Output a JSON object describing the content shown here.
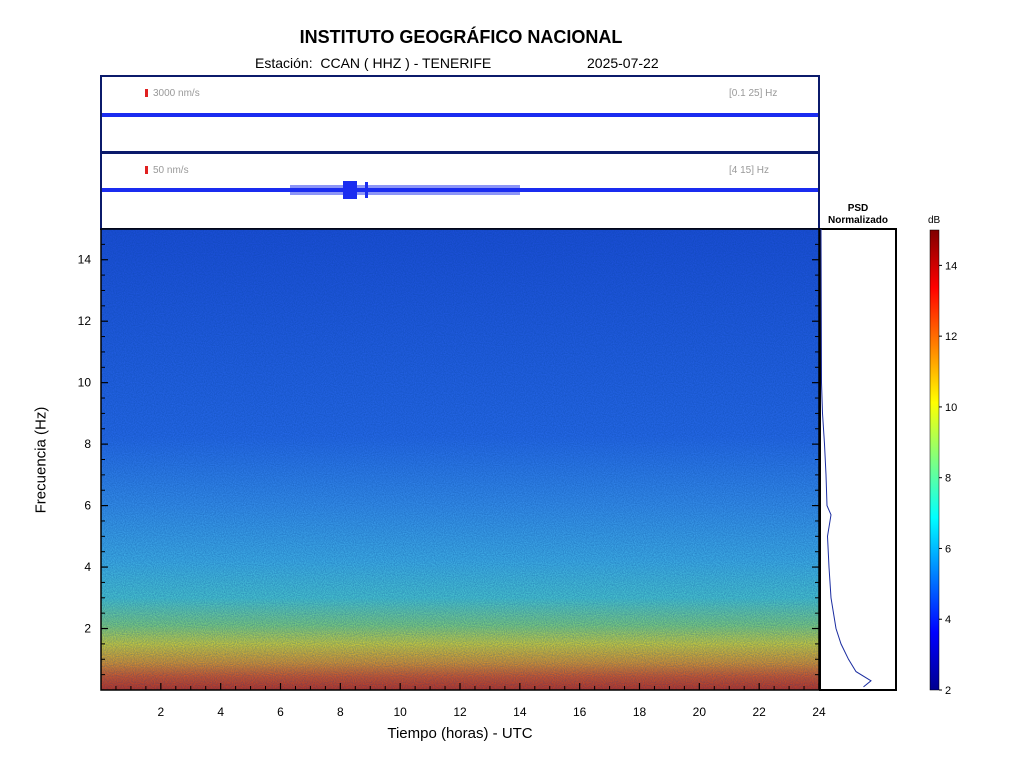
{
  "header": {
    "title": "INSTITUTO GEOGRÁFICO NACIONAL",
    "station": "Estación:  CCAN ( HHZ ) - TENERIFE",
    "date": "2025-07-22"
  },
  "traces": [
    {
      "scale_label": "3000 nm/s",
      "band_label": "[0.1 25] Hz"
    },
    {
      "scale_label": "50 nm/s",
      "band_label": "[4 15] Hz"
    }
  ],
  "psd": {
    "title_line1": "PSD",
    "title_line2": "Normalizado"
  },
  "colorbar": {
    "unit": "dB",
    "ticks": [
      "2",
      "4",
      "6",
      "8",
      "10",
      "12",
      "14"
    ],
    "range": [
      2,
      15
    ]
  },
  "chart_data": {
    "type": "heatmap",
    "title": "INSTITUTO GEOGRÁFICO NACIONAL",
    "xlabel": "Tiempo (horas) - UTC",
    "ylabel": "Frecuencia  (Hz)",
    "xlim": [
      0,
      24
    ],
    "ylim": [
      0,
      15
    ],
    "x_ticks": [
      2,
      4,
      6,
      8,
      10,
      12,
      14,
      16,
      18,
      20,
      22,
      24
    ],
    "y_ticks": [
      2,
      4,
      6,
      8,
      10,
      12,
      14
    ],
    "colorscale": "jet",
    "color_range_db": [
      2,
      15
    ],
    "mean_level_by_frequency": [
      {
        "freq_hz": 0.3,
        "db": 11.5
      },
      {
        "freq_hz": 1,
        "db": 9
      },
      {
        "freq_hz": 2,
        "db": 7
      },
      {
        "freq_hz": 3,
        "db": 6
      },
      {
        "freq_hz": 4,
        "db": 5.4
      },
      {
        "freq_hz": 6,
        "db": 5
      },
      {
        "freq_hz": 8,
        "db": 4.7
      },
      {
        "freq_hz": 10,
        "db": 4.4
      },
      {
        "freq_hz": 12,
        "db": 4.3
      },
      {
        "freq_hz": 15,
        "db": 4.2
      }
    ],
    "psd_normalized": [
      {
        "freq_hz": 0.1,
        "value": 0.85
      },
      {
        "freq_hz": 0.3,
        "value": 1.0
      },
      {
        "freq_hz": 0.6,
        "value": 0.7
      },
      {
        "freq_hz": 1,
        "value": 0.55
      },
      {
        "freq_hz": 1.5,
        "value": 0.4
      },
      {
        "freq_hz": 2,
        "value": 0.3
      },
      {
        "freq_hz": 3,
        "value": 0.2
      },
      {
        "freq_hz": 4,
        "value": 0.16
      },
      {
        "freq_hz": 5,
        "value": 0.13
      },
      {
        "freq_hz": 5.7,
        "value": 0.2
      },
      {
        "freq_hz": 6,
        "value": 0.12
      },
      {
        "freq_hz": 7,
        "value": 0.1
      },
      {
        "freq_hz": 8,
        "value": 0.07
      },
      {
        "freq_hz": 9,
        "value": 0.03
      },
      {
        "freq_hz": 10,
        "value": 0.01
      },
      {
        "freq_hz": 15,
        "value": 0.0
      }
    ]
  }
}
